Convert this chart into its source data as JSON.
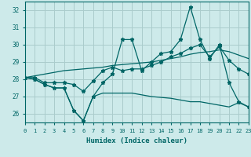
{
  "xlabel": "Humidex (Indice chaleur)",
  "background_color": "#cdeaea",
  "grid_color": "#aacccc",
  "line_color": "#006666",
  "xlim": [
    0,
    23
  ],
  "ylim": [
    25.5,
    32.5
  ],
  "yticks": [
    26,
    27,
    28,
    29,
    30,
    31,
    32
  ],
  "xticks": [
    0,
    1,
    2,
    3,
    4,
    5,
    6,
    7,
    8,
    9,
    10,
    11,
    12,
    13,
    14,
    15,
    16,
    17,
    18,
    19,
    20,
    21,
    22,
    23
  ],
  "line_max": [
    28.1,
    28.0,
    27.7,
    27.5,
    27.5,
    26.2,
    25.6,
    27.0,
    27.8,
    28.3,
    30.3,
    30.3,
    28.5,
    29.0,
    29.5,
    29.6,
    30.3,
    32.2,
    30.3,
    29.2,
    30.0,
    27.8,
    26.7,
    26.4
  ],
  "line_avg": [
    28.1,
    28.1,
    27.8,
    27.8,
    27.8,
    27.7,
    27.3,
    27.9,
    28.5,
    28.7,
    28.5,
    28.6,
    28.6,
    28.8,
    29.0,
    29.3,
    29.5,
    29.8,
    30.0,
    29.3,
    29.9,
    29.1,
    28.6,
    28.3
  ],
  "line_trend": [
    28.1,
    28.2,
    28.3,
    28.4,
    28.5,
    28.55,
    28.6,
    28.65,
    28.7,
    28.8,
    28.85,
    28.9,
    28.95,
    29.0,
    29.1,
    29.2,
    29.3,
    29.45,
    29.55,
    29.6,
    29.7,
    29.6,
    29.4,
    29.2
  ],
  "line_min": [
    28.1,
    28.0,
    27.7,
    27.5,
    27.5,
    26.2,
    25.6,
    27.0,
    27.2,
    27.2,
    27.2,
    27.2,
    27.1,
    27.0,
    26.95,
    26.9,
    26.8,
    26.7,
    26.7,
    26.6,
    26.5,
    26.4,
    26.65,
    26.4
  ]
}
